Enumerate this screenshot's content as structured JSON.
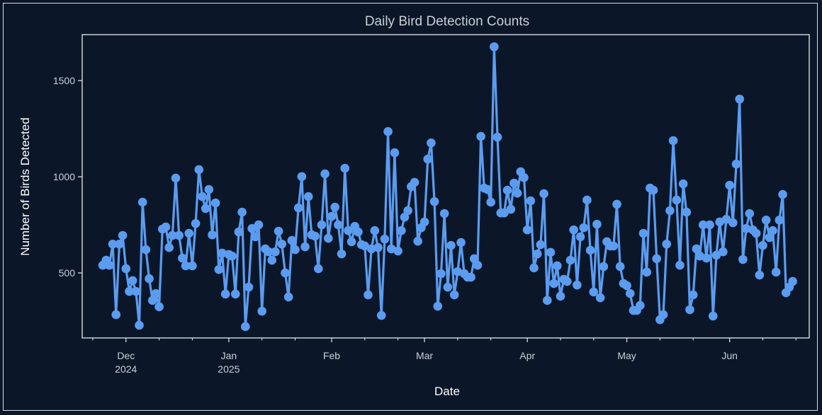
{
  "chart_data": {
    "type": "line",
    "title": "Daily Bird Detection Counts",
    "xlabel": "Date",
    "ylabel": "Number of Birds Detected",
    "start_date": "2024-11-24",
    "x_unit": "days since start_date",
    "xlim": [
      -6.2,
      213
    ],
    "ylim": [
      162,
      1739
    ],
    "grid": false,
    "line_color": "#5b9cf0",
    "background_color": "#0b1729",
    "y_ticks": [
      500,
      1000,
      1500
    ],
    "y_tick_labels": [
      "500",
      "1000",
      "1500"
    ],
    "x_ticks": [
      {
        "day": 7,
        "label": "Dec",
        "sublabel": "2024"
      },
      {
        "day": 38,
        "label": "Jan",
        "sublabel": "2025"
      },
      {
        "day": 69,
        "label": "Feb",
        "sublabel": ""
      },
      {
        "day": 97,
        "label": "Mar",
        "sublabel": ""
      },
      {
        "day": 128,
        "label": "Apr",
        "sublabel": ""
      },
      {
        "day": 158,
        "label": "May",
        "sublabel": ""
      },
      {
        "day": 189,
        "label": "Jun",
        "sublabel": ""
      }
    ],
    "x_minor_ticks": [
      -3,
      17,
      27,
      48,
      58,
      79,
      89,
      107,
      117,
      138,
      148,
      168,
      178,
      199,
      209
    ],
    "values": [
      540,
      566,
      540,
      650,
      283,
      650,
      695,
      522,
      404,
      460,
      404,
      228,
      868,
      621,
      470,
      357,
      393,
      324,
      728,
      739,
      632,
      695,
      993,
      695,
      577,
      537,
      706,
      537,
      757,
      1037,
      897,
      835,
      934,
      698,
      864,
      518,
      603,
      390,
      596,
      588,
      390,
      713,
      816,
      221,
      426,
      731,
      688,
      750,
      301,
      625,
      610,
      566,
      610,
      717,
      650,
      500,
      375,
      669,
      621,
      838,
      1001,
      636,
      897,
      698,
      691,
      522,
      750,
      1015,
      680,
      794,
      842,
      750,
      599,
      1044,
      720,
      662,
      742,
      713,
      647,
      640,
      386,
      625,
      720,
      632,
      279,
      676,
      1235,
      625,
      1125,
      614,
      720,
      790,
      824,
      949,
      971,
      665,
      735,
      765,
      1092,
      1176,
      871,
      327,
      496,
      809,
      426,
      643,
      386,
      507,
      658,
      496,
      478,
      478,
      574,
      540,
      1210,
      941,
      934,
      868,
      1676,
      1206,
      812,
      812,
      930,
      831,
      967,
      915,
      1026,
      996,
      724,
      875,
      526,
      599,
      647,
      912,
      357,
      607,
      445,
      537,
      379,
      467,
      456,
      566,
      724,
      437,
      688,
      735,
      879,
      618,
      401,
      753,
      371,
      533,
      662,
      640,
      640,
      857,
      533,
      445,
      434,
      393,
      305,
      305,
      331,
      706,
      504,
      941,
      930,
      574,
      257,
      283,
      650,
      824,
      1188,
      879,
      540,
      963,
      816,
      309,
      386,
      625,
      588,
      750,
      577,
      750,
      276,
      592,
      765,
      610,
      779,
      956,
      761,
      1066,
      1404,
      570,
      731,
      809,
      724,
      706,
      489,
      643,
      775,
      684,
      720,
      504,
      775,
      908,
      397,
      426,
      456
    ]
  }
}
